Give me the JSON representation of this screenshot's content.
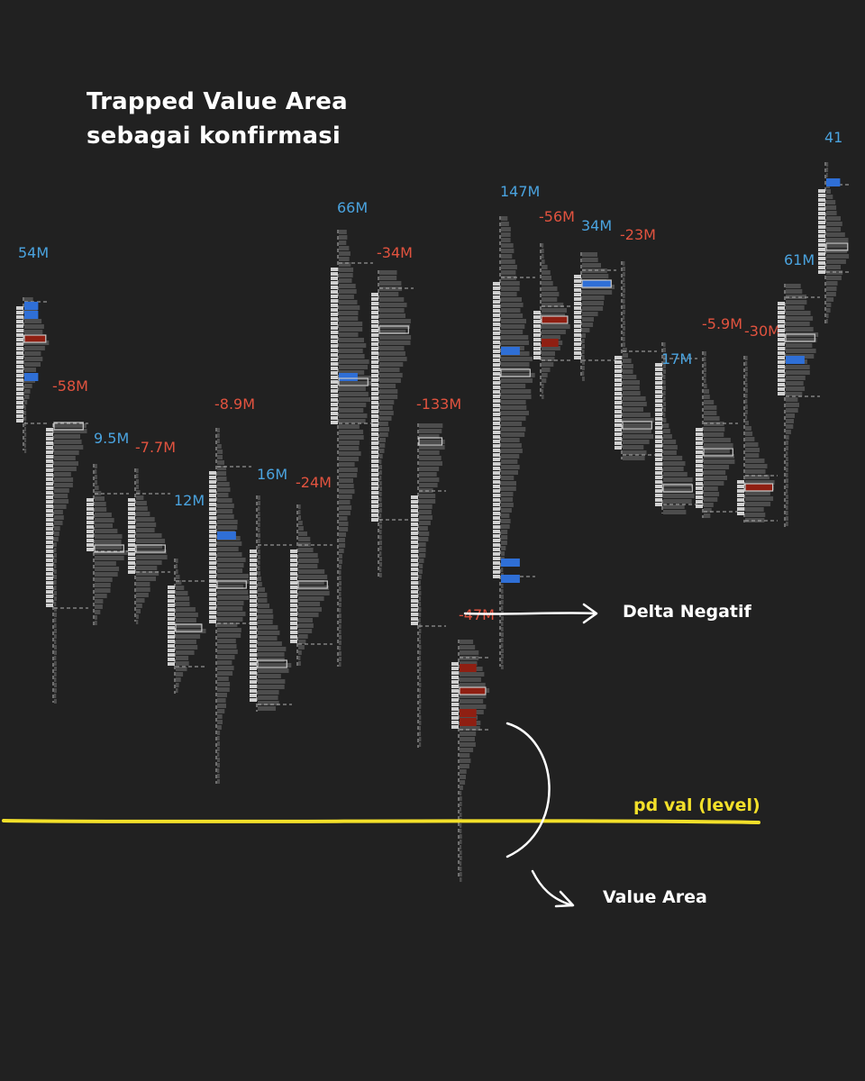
{
  "title": {
    "line1": "Trapped Value Area",
    "line2": "sebagai konfirmasi"
  },
  "annotations": {
    "delta": "Delta Negatif",
    "level": "pd val (level)",
    "value_area": "Value Area"
  },
  "colors": {
    "background": "#212121",
    "positive_label": "#4aa3df",
    "negative_label": "#e2533f",
    "profile": "#4d4d4d",
    "candle": "#d0d0d0",
    "buy_cluster": "#2f6fd6",
    "sell_cluster": "#8f1f12",
    "level_line": "#f3e02a",
    "annotation": "#ffffff"
  },
  "chart_data": {
    "type": "footprint volume profile",
    "delta_unit": "M",
    "columns": [
      {
        "delta": "54M",
        "sign": "pos"
      },
      {
        "delta": "-58M",
        "sign": "neg"
      },
      {
        "delta": "9.5M",
        "sign": "pos"
      },
      {
        "delta": "-7.7M",
        "sign": "neg"
      },
      {
        "delta": "12M",
        "sign": "pos"
      },
      {
        "delta": "-8.9M",
        "sign": "neg"
      },
      {
        "delta": "16M",
        "sign": "pos"
      },
      {
        "delta": "-24M",
        "sign": "neg"
      },
      {
        "delta": "66M",
        "sign": "pos"
      },
      {
        "delta": "-34M",
        "sign": "neg"
      },
      {
        "delta": "-133M",
        "sign": "neg"
      },
      {
        "delta": "-47M",
        "sign": "neg"
      },
      {
        "delta": "147M",
        "sign": "pos"
      },
      {
        "delta": "-56M",
        "sign": "neg"
      },
      {
        "delta": "34M",
        "sign": "pos"
      },
      {
        "delta": "-23M",
        "sign": "neg"
      },
      {
        "delta": "17M",
        "sign": "pos"
      },
      {
        "delta": "-5.9M",
        "sign": "neg"
      },
      {
        "delta": "-30M",
        "sign": "neg"
      },
      {
        "delta": "61M",
        "sign": "pos"
      },
      {
        "delta": "41",
        "sign": "pos"
      }
    ]
  }
}
